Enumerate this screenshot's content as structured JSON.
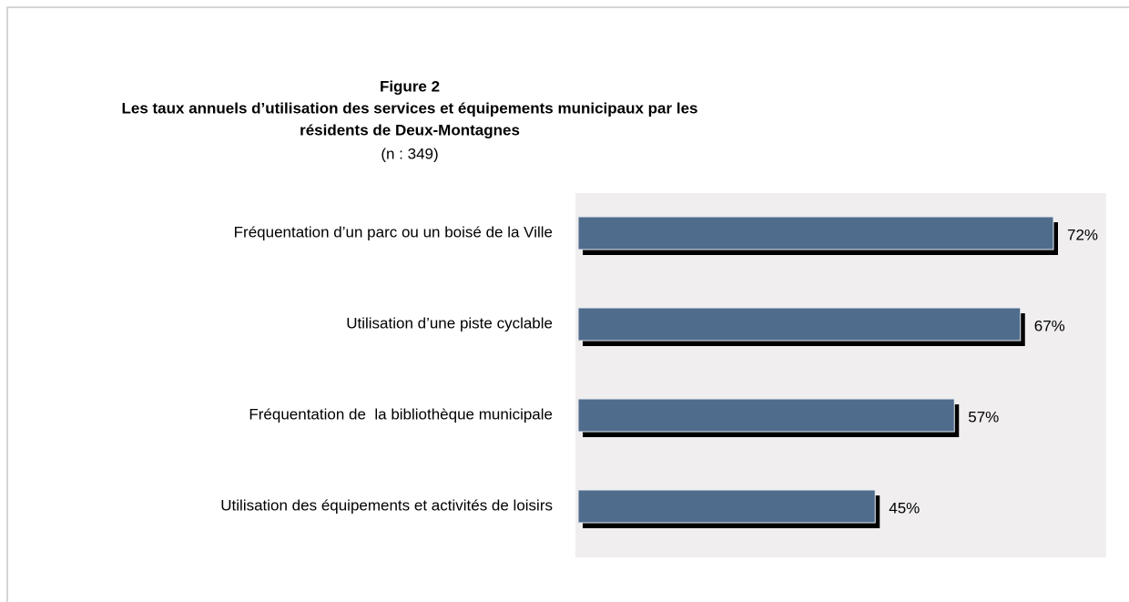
{
  "chart_data": {
    "type": "bar",
    "orientation": "horizontal",
    "title": [
      "Figure 2",
      "Les taux annuels d’utilisation des services et équipements municipaux par les",
      "résidents de Deux-Montagnes"
    ],
    "subtitle": "(n : 349)",
    "categories": [
      "Fréquentation d’un parc ou un boisé de la Ville",
      "Utilisation d’une piste cyclable",
      "Fréquentation de  la bibliothèque municipale",
      "Utilisation des équipements et activités de loisirs"
    ],
    "values": [
      72,
      67,
      57,
      45
    ],
    "value_labels": [
      "72%",
      "67%",
      "57%",
      "45%"
    ],
    "color": "#506c8c",
    "xlim": [
      0,
      80
    ]
  }
}
